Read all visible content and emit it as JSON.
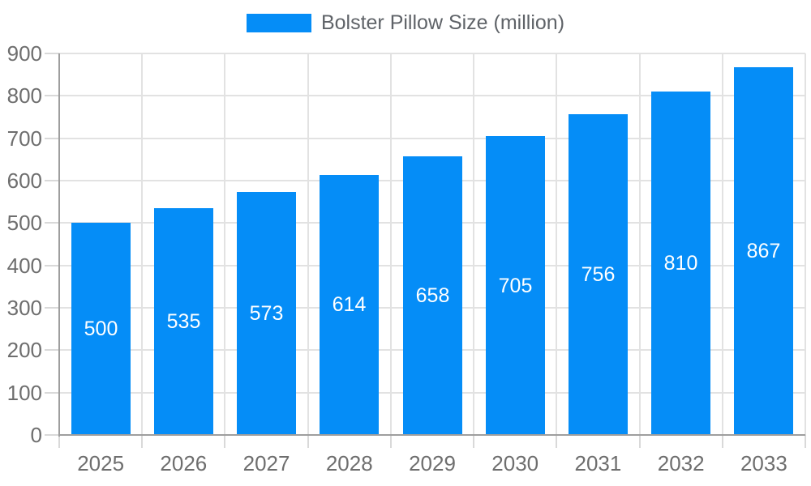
{
  "chart_data": {
    "type": "bar",
    "title": "Bolster Pillow Size (million)",
    "categories": [
      "2025",
      "2026",
      "2027",
      "2028",
      "2029",
      "2030",
      "2031",
      "2032",
      "2033"
    ],
    "values": [
      500,
      535,
      573,
      614,
      658,
      705,
      756,
      810,
      867
    ],
    "series_name": "Bolster Pillow Size (million)",
    "xlabel": "",
    "ylabel": "",
    "ylim": [
      0,
      900
    ],
    "ytick_step": 100,
    "yticks": [
      0,
      100,
      200,
      300,
      400,
      500,
      600,
      700,
      800,
      900
    ],
    "grid": true,
    "legend_position": "top",
    "bar_value_labels": "inside-center"
  },
  "legend": {
    "label": "Bolster Pillow Size (million)"
  },
  "colors": {
    "bar": "#058DF7",
    "bar_label_text": "#FFFFFF",
    "axis_text": "#6E6E6E",
    "legend_text": "#5F6368",
    "axis_line": "#9E9E9E",
    "gridline": "#E2E2E2",
    "tick": "#D9D9D9",
    "background": "#FFFFFF"
  }
}
